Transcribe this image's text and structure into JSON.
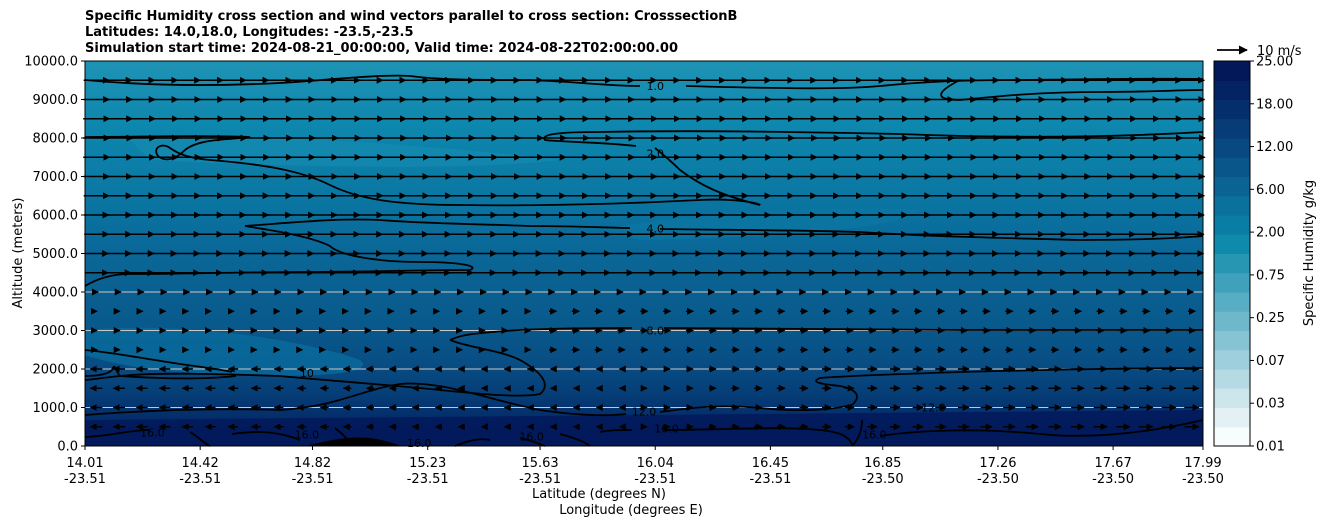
{
  "chart_data": {
    "type": "contourf",
    "title_lines": [
      "Specific Humidity cross section and wind vectors parallel to cross section: CrosssectionB",
      "Latitudes: 14.0,18.0, Longitudes: -23.5,-23.5",
      "Simulation start time: 2024-08-21_00:00:00, Valid time: 2024-08-22T02:00:00.00"
    ],
    "ylabel": "Altitude (meters)",
    "xlabel_lat": "Latitude (degrees N)",
    "xlabel_lon": "Longitude (degrees E)",
    "ylim": [
      0,
      10000
    ],
    "yticks": [
      "0.0",
      "1000.0",
      "2000.0",
      "3000.0",
      "4000.0",
      "5000.0",
      "6000.0",
      "7000.0",
      "8000.0",
      "9000.0",
      "10000.0"
    ],
    "yticks_values": [
      0,
      1000,
      2000,
      3000,
      4000,
      5000,
      6000,
      7000,
      8000,
      9000,
      10000
    ],
    "xticks": [
      {
        "lat": "14.01",
        "lon": "-23.51"
      },
      {
        "lat": "14.42",
        "lon": "-23.51"
      },
      {
        "lat": "14.82",
        "lon": "-23.51"
      },
      {
        "lat": "15.23",
        "lon": "-23.51"
      },
      {
        "lat": "15.63",
        "lon": "-23.51"
      },
      {
        "lat": "16.04",
        "lon": "-23.51"
      },
      {
        "lat": "16.45",
        "lon": "-23.51"
      },
      {
        "lat": "16.85",
        "lon": "-23.50"
      },
      {
        "lat": "17.26",
        "lon": "-23.50"
      },
      {
        "lat": "17.67",
        "lon": "-23.50"
      },
      {
        "lat": "17.99",
        "lon": "-23.50"
      }
    ],
    "xticks_values": [
      14.01,
      14.42,
      14.82,
      15.23,
      15.63,
      16.04,
      16.45,
      16.85,
      17.26,
      17.67,
      17.99
    ],
    "xlim": [
      14.01,
      17.99
    ],
    "grid": "horizontal",
    "colorbar": {
      "label": "Specific Humidity g/kg",
      "ticks": [
        "0.01",
        "0.03",
        "0.07",
        "0.25",
        "0.75",
        "2.00",
        "6.00",
        "12.00",
        "18.00",
        "25.00"
      ],
      "levels": 20,
      "colors": [
        "#f7fcfd",
        "#e3f1f4",
        "#cce6ec",
        "#b5dae4",
        "#9ecfdc",
        "#86c3d3",
        "#6fb8cb",
        "#57adc3",
        "#3fa1bb",
        "#2696b3",
        "#0e8aab",
        "#0a7da5",
        "#0a709c",
        "#0a6393",
        "#09568a",
        "#094981",
        "#073c76",
        "#052f6c",
        "#032362",
        "#021858"
      ]
    },
    "quiver_key": {
      "label": "10 m/s"
    },
    "contours": [
      {
        "level": "1.0",
        "label_x": 16.04,
        "label_y": 9350
      },
      {
        "level": "2.0",
        "label_x": 16.04,
        "label_y": 7600
      },
      {
        "level": "4.0",
        "label_x": 16.04,
        "label_y": 5650
      },
      {
        "level": "8.0",
        "label_x": 16.04,
        "label_y": 3000
      },
      {
        "level": "10",
        "label_x": 14.8,
        "label_y": 1900
      },
      {
        "level": "12.0",
        "label_x": 16.0,
        "label_y": 900
      },
      {
        "level": "12.0",
        "label_x": 17.03,
        "label_y": 1000
      },
      {
        "level": "16.0",
        "label_x": 16.08,
        "label_y": 450
      },
      {
        "level": "16.0",
        "label_x": 14.8,
        "label_y": 300
      },
      {
        "level": "16.0",
        "label_x": 15.2,
        "label_y": 80
      },
      {
        "level": "16.0",
        "label_x": 15.6,
        "label_y": 250
      },
      {
        "level": "16.0",
        "label_x": 16.82,
        "label_y": 300
      },
      {
        "level": "16.0",
        "label_x": 14.25,
        "label_y": 350
      }
    ]
  }
}
